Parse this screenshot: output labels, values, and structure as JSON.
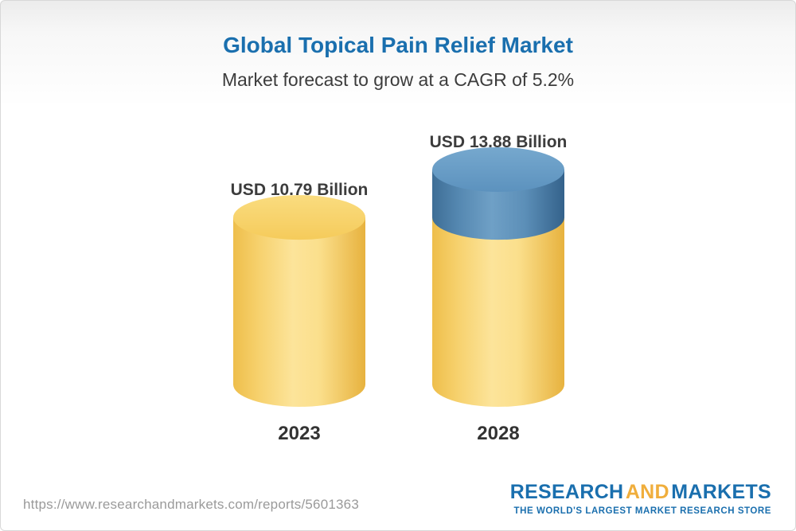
{
  "header": {
    "title": "Global Topical Pain Relief Market",
    "subtitle": "Market forecast to grow at a CAGR of 5.2%"
  },
  "chart_data": {
    "type": "bar",
    "variant": "3d-cylinder",
    "categories": [
      "2023",
      "2028"
    ],
    "values": [
      10.79,
      13.88
    ],
    "value_labels": [
      "USD 10.79 Billion",
      "USD 13.88 Billion"
    ],
    "unit": "USD Billion",
    "cagr_percent": 5.2,
    "title": "Global Topical Pain Relief Market",
    "xlabel": "",
    "ylabel": "",
    "legend": [],
    "grid": false,
    "colors": {
      "base_segment": "#F6CF62",
      "growth_segment": "#5B90BA",
      "title_blue": "#1A6FAE",
      "text_dark": "#3C3C3C"
    }
  },
  "footer": {
    "url": "https://www.researchandmarkets.com/reports/5601363",
    "logo": {
      "word1": "RESEARCH",
      "word2": "AND",
      "word3": "MARKETS",
      "tagline": "THE WORLD'S LARGEST MARKET RESEARCH STORE"
    }
  }
}
